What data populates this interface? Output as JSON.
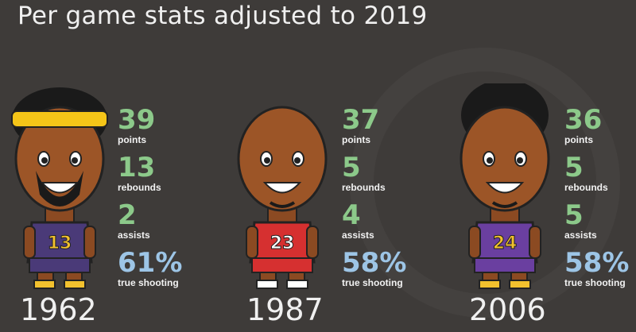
{
  "title": "Per game stats adjusted to 2019",
  "colors": {
    "stat_green": "#8cc98a",
    "stat_blue": "#9dc5e6",
    "background": "#3e3b39"
  },
  "players": [
    {
      "year": "1962",
      "jersey_number": "13",
      "jersey_color": "#4a3a78",
      "trim_color": "#f2c12e",
      "headband": true,
      "beard": true,
      "stats": {
        "points": "39",
        "rebounds": "13",
        "assists": "2",
        "true_shooting": "61%"
      }
    },
    {
      "year": "1987",
      "jersey_number": "23",
      "jersey_color": "#d63030",
      "trim_color": "#ffffff",
      "headband": false,
      "beard": false,
      "stats": {
        "points": "37",
        "rebounds": "5",
        "assists": "4",
        "true_shooting": "58%"
      }
    },
    {
      "year": "2006",
      "jersey_number": "24",
      "jersey_color": "#6a3fa0",
      "trim_color": "#f2c12e",
      "headband": false,
      "beard": false,
      "stats": {
        "points": "36",
        "rebounds": "5",
        "assists": "5",
        "true_shooting": "58%"
      }
    }
  ],
  "labels": {
    "points": "points",
    "rebounds": "rebounds",
    "assists": "assists",
    "true_shooting": "true shooting"
  }
}
